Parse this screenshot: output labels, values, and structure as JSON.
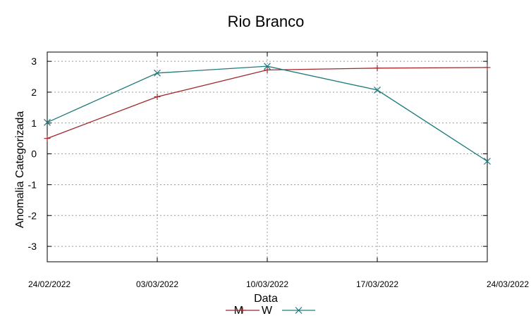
{
  "chart_data": {
    "type": "line",
    "title": "Rio Branco",
    "xlabel": "Data",
    "ylabel": "Anomalia Categorizada",
    "ylim": [
      -3.5,
      3.3
    ],
    "yticks": [
      "3",
      "2",
      "1",
      "0",
      "-1",
      "-2",
      "-3"
    ],
    "ytick_values": [
      3,
      2,
      1,
      0,
      -1,
      -2,
      -3
    ],
    "categories": [
      "24/02/2022",
      "03/03/2022",
      "10/03/2022",
      "17/03/2022",
      "24/03/2022"
    ],
    "grid": true,
    "legend_position": "bottom",
    "series": [
      {
        "name": "M",
        "color": "#a0282c",
        "marker": "plus",
        "values": [
          0.5,
          1.85,
          2.72,
          2.78,
          2.8
        ]
      },
      {
        "name": "W",
        "color": "#1f7a7a",
        "marker": "cross",
        "values": [
          1.02,
          2.62,
          2.84,
          2.07,
          -0.24
        ]
      }
    ]
  }
}
